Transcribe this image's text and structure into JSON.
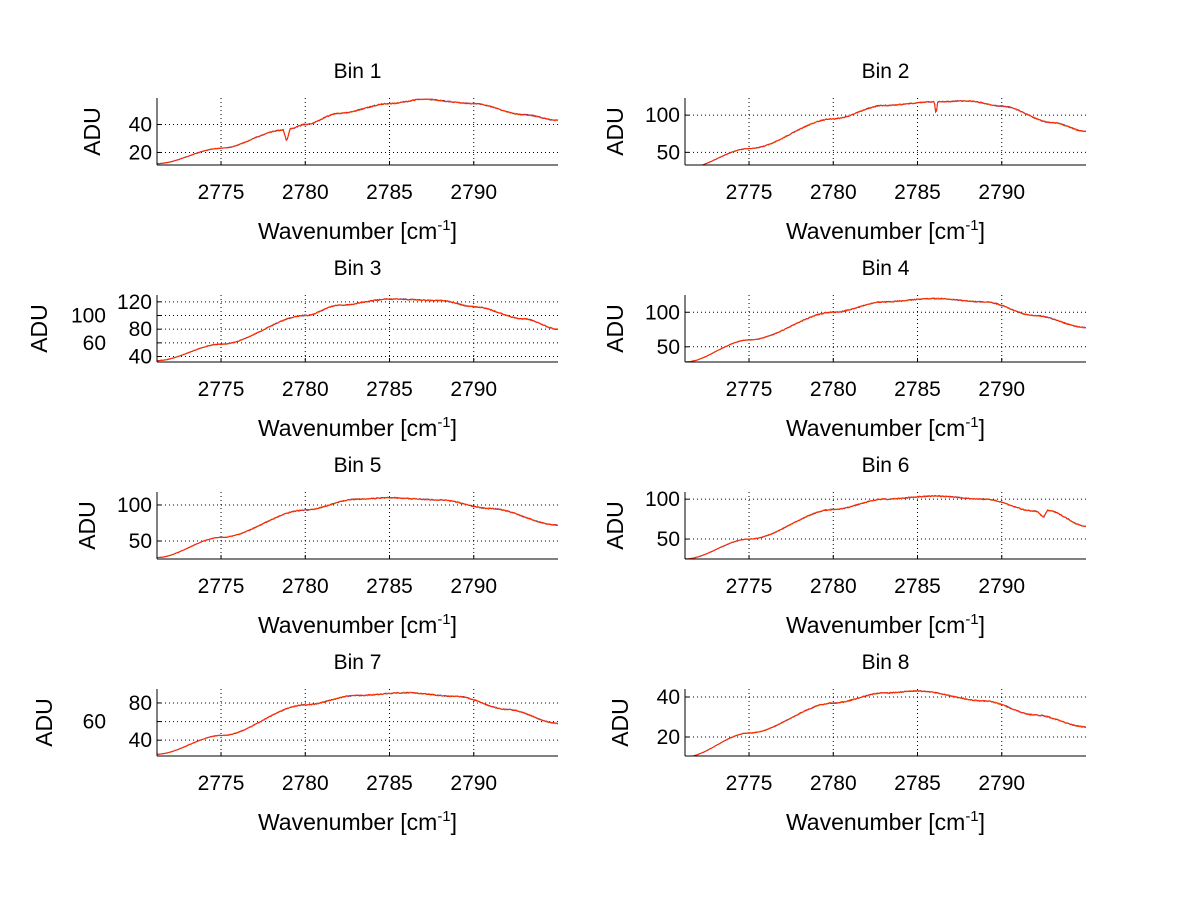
{
  "chart_data": {
    "type": "line",
    "layout": "4x2 subplot grid",
    "grid": true,
    "series_colors": {
      "series_1": "#2b2bd9",
      "series_2": "#e8a020",
      "series_3": "#ff2000"
    },
    "xlabel_prefix": "Wavenumber [cm",
    "xlabel_sup": "-1",
    "xlabel_suffix": "]",
    "ylabel": "ADU",
    "xlim": [
      2771.2,
      2795.0
    ],
    "xticks": [
      2775,
      2780,
      2785,
      2790
    ],
    "subplots": [
      {
        "title": "Bin 1",
        "ylim": [
          11,
          59
        ],
        "yticks": [
          20,
          40
        ],
        "points": [
          [
            2771.2,
            12
          ],
          [
            2775,
            23
          ],
          [
            2778.7,
            36
          ],
          [
            2778.9,
            28
          ],
          [
            2779.1,
            37
          ],
          [
            2780,
            40
          ],
          [
            2782,
            48
          ],
          [
            2785,
            55
          ],
          [
            2787,
            58
          ],
          [
            2790,
            55
          ],
          [
            2793,
            47
          ],
          [
            2795,
            43
          ]
        ]
      },
      {
        "title": "Bin 2",
        "ylim": [
          33,
          123
        ],
        "yticks": [
          50,
          100
        ],
        "points": [
          [
            2771.2,
            28
          ],
          [
            2775,
            55
          ],
          [
            2780,
            95
          ],
          [
            2783,
            113
          ],
          [
            2786,
            118
          ],
          [
            2786.1,
            100
          ],
          [
            2786.2,
            118
          ],
          [
            2788,
            119
          ],
          [
            2790,
            112
          ],
          [
            2793,
            90
          ],
          [
            2795,
            78
          ]
        ]
      },
      {
        "title": "Bin 3",
        "ylim": [
          32,
          130
        ],
        "yticks": [
          40,
          60,
          80,
          100,
          120
        ],
        "points": [
          [
            2771.2,
            34
          ],
          [
            2775,
            58
          ],
          [
            2780,
            100
          ],
          [
            2782,
            115
          ],
          [
            2785,
            124
          ],
          [
            2788,
            122
          ],
          [
            2790,
            113
          ],
          [
            2793,
            95
          ],
          [
            2795,
            80
          ]
        ]
      },
      {
        "title": "Bin 4",
        "ylim": [
          28,
          125
        ],
        "yticks": [
          50,
          100
        ],
        "points": [
          [
            2771.2,
            28
          ],
          [
            2775,
            60
          ],
          [
            2780,
            100
          ],
          [
            2783,
            115
          ],
          [
            2786,
            120
          ],
          [
            2789,
            115
          ],
          [
            2792,
            95
          ],
          [
            2795,
            78
          ]
        ]
      },
      {
        "title": "Bin 5",
        "ylim": [
          25,
          118
        ],
        "yticks": [
          50,
          100
        ],
        "points": [
          [
            2771.2,
            27
          ],
          [
            2775,
            55
          ],
          [
            2780,
            93
          ],
          [
            2783,
            108
          ],
          [
            2785,
            110
          ],
          [
            2788,
            107
          ],
          [
            2791,
            95
          ],
          [
            2795,
            72
          ]
        ]
      },
      {
        "title": "Bin 6",
        "ylim": [
          25,
          109
        ],
        "yticks": [
          50,
          100
        ],
        "points": [
          [
            2771.2,
            25
          ],
          [
            2775,
            50
          ],
          [
            2780,
            87
          ],
          [
            2783,
            100
          ],
          [
            2786,
            104
          ],
          [
            2789,
            100
          ],
          [
            2792,
            85
          ],
          [
            2792.5,
            78
          ],
          [
            2792.7,
            86
          ],
          [
            2795,
            66
          ]
        ]
      },
      {
        "title": "Bin 7",
        "ylim": [
          23,
          95
        ],
        "yticks": [
          40,
          60,
          80
        ],
        "points": [
          [
            2771.2,
            25
          ],
          [
            2775,
            45
          ],
          [
            2780,
            78
          ],
          [
            2783,
            88
          ],
          [
            2786,
            91
          ],
          [
            2789,
            87
          ],
          [
            2792,
            73
          ],
          [
            2795,
            58
          ]
        ]
      },
      {
        "title": "Bin 8",
        "ylim": [
          10.5,
          44
        ],
        "yticks": [
          20,
          40
        ],
        "points": [
          [
            2771.2,
            10
          ],
          [
            2775,
            22
          ],
          [
            2780,
            37
          ],
          [
            2783,
            42
          ],
          [
            2785,
            43
          ],
          [
            2789,
            38
          ],
          [
            2792,
            31
          ],
          [
            2795,
            25
          ]
        ]
      }
    ]
  }
}
